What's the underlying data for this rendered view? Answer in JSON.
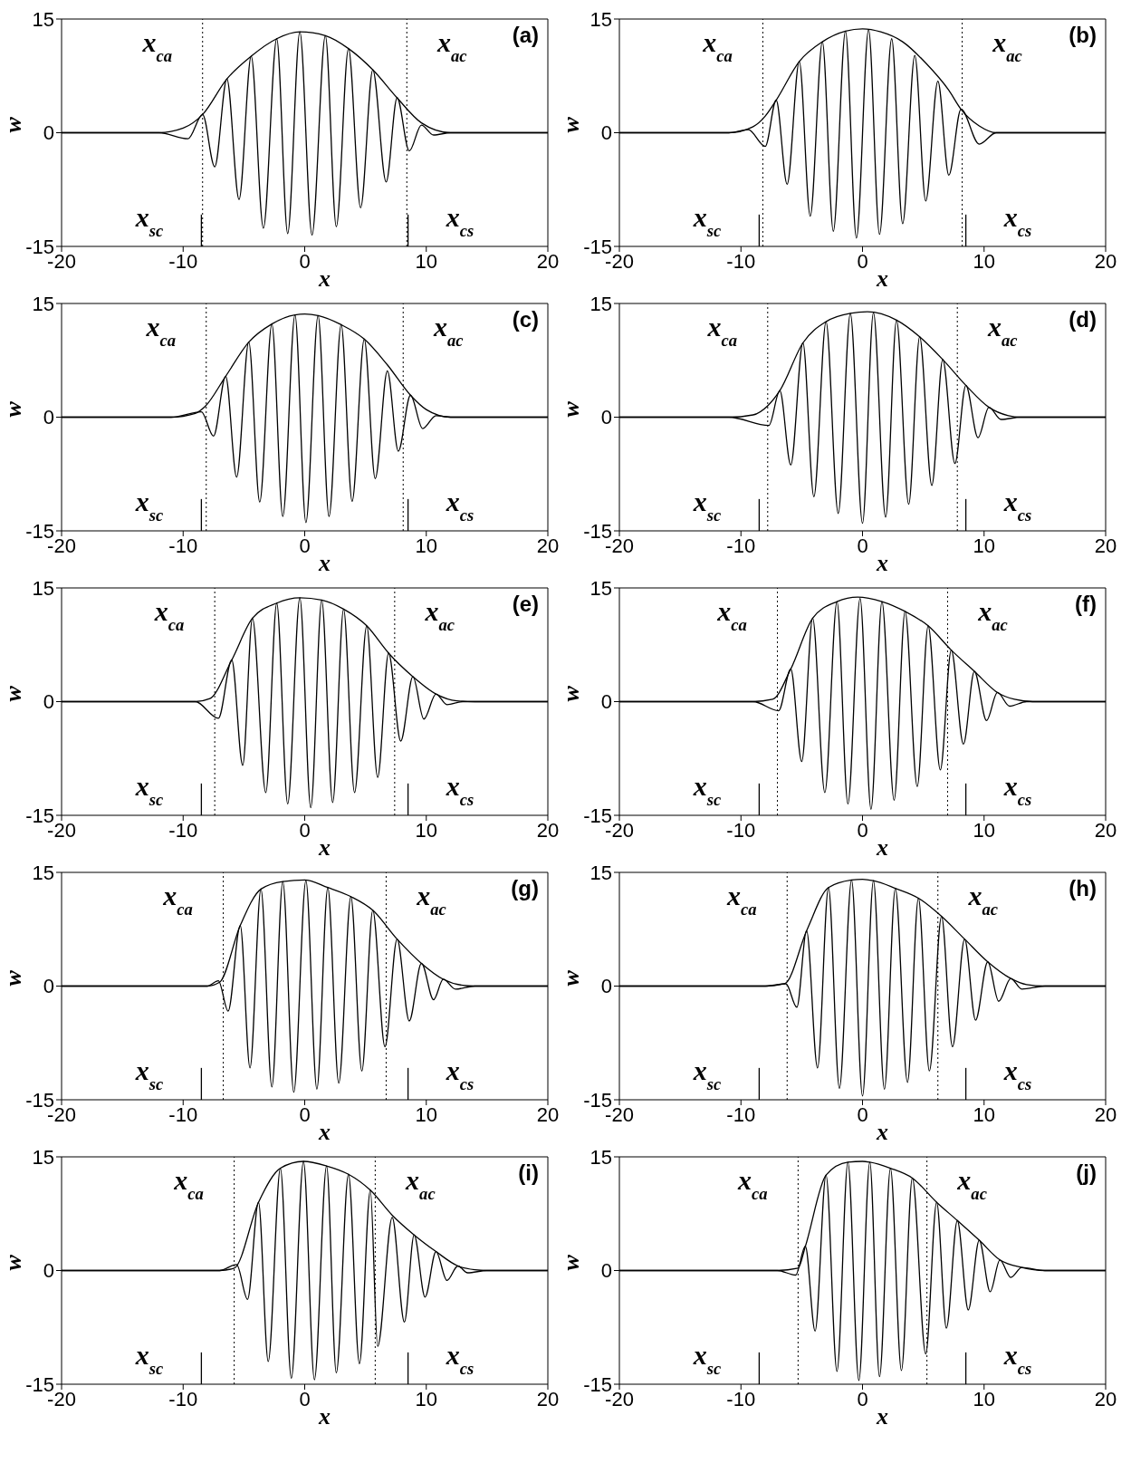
{
  "chart_data": [
    {
      "type": "line",
      "xlabel": "x",
      "ylabel": "w",
      "xlim": [
        -20,
        20
      ],
      "ylim": [
        -15,
        15
      ],
      "xticks": [
        -20,
        -10,
        0,
        10,
        20
      ],
      "yticks": [
        -15,
        0,
        15
      ],
      "annotations": [
        "(a)",
        "x$_{sc}$",
        "x$_{cs}$"
      ],
      "ref_lines": [
        {
          "axis": "x",
          "value": -8.4,
          "line_style": "dotted",
          "label": "x$_{ca}$"
        },
        {
          "axis": "x",
          "value": 8.4,
          "line_style": "dotted",
          "label": "x$_{ac}$"
        }
      ],
      "series": [
        {
          "color": "#000000",
          "x": [
            -20,
            -12,
            -9.6,
            -8.4,
            -7.4,
            -6.4,
            -5.4,
            -4.4,
            -3.4,
            -2.3,
            -1.4,
            -0.4,
            0.6,
            1.7,
            2.6,
            3.6,
            4.6,
            5.6,
            6.7,
            7.6,
            8.6,
            9.6,
            10.6,
            12,
            20
          ],
          "values": [
            0,
            0,
            -0.8,
            2.4,
            -4.5,
            7.1,
            -8.8,
            10.1,
            -12.6,
            12.4,
            -13.3,
            13.3,
            -13.5,
            12.8,
            -12.4,
            11.1,
            -9.9,
            8.3,
            -6.5,
            4.6,
            -2.4,
            1.0,
            -0.3,
            0,
            0
          ]
        },
        {
          "color": "#000000",
          "x": [
            -20,
            -12,
            -10,
            -8.4,
            -6.4,
            -4.4,
            -2.3,
            -0.4,
            1.7,
            3.6,
            5.6,
            7.6,
            9.6,
            12,
            20
          ],
          "values": [
            0,
            0,
            0.6,
            2.4,
            7.1,
            10.1,
            12.4,
            13.3,
            12.8,
            11.1,
            8.3,
            4.6,
            1.3,
            0,
            0
          ]
        },
        {
          "color": "#000000",
          "x": [
            -8.5,
            -8.5
          ],
          "values": [
            -15,
            -10.8
          ]
        },
        {
          "color": "#000000",
          "x": [
            8.5,
            8.5
          ],
          "values": [
            -15,
            -10.8
          ]
        }
      ]
    },
    {
      "type": "line",
      "xlabel": "x",
      "ylabel": "w",
      "xlim": [
        -20,
        20
      ],
      "ylim": [
        -15,
        15
      ],
      "xticks": [
        -20,
        -10,
        0,
        10,
        20
      ],
      "yticks": [
        -15,
        0,
        15
      ],
      "annotations": [
        "(b)",
        "x$_{sc}$",
        "x$_{cs}$"
      ],
      "ref_lines": [
        {
          "axis": "x",
          "value": -8.2,
          "line_style": "dotted",
          "label": "x$_{ca}$"
        },
        {
          "axis": "x",
          "value": 8.2,
          "line_style": "dotted",
          "label": "x$_{ac}$"
        }
      ],
      "series": [
        {
          "color": "#000000",
          "x": [
            -20,
            -11,
            -9.4,
            -8.0,
            -7.1,
            -6.2,
            -5.2,
            -4.3,
            -3.3,
            -2.4,
            -1.4,
            -0.5,
            0.5,
            1.4,
            2.4,
            3.3,
            4.3,
            5.2,
            6.2,
            7.1,
            8.1,
            9.6,
            11,
            20
          ],
          "values": [
            0,
            0,
            0.4,
            -1.8,
            4.3,
            -6.8,
            9.4,
            -11.0,
            12.0,
            -13.0,
            13.4,
            -13.9,
            13.6,
            -13.4,
            12.4,
            -12.0,
            10.2,
            -9.0,
            6.8,
            -5.6,
            3.1,
            -1.5,
            0,
            0
          ]
        },
        {
          "color": "#000000",
          "x": [
            -20,
            -11,
            -9,
            -8,
            -7.1,
            -5.2,
            -3.3,
            -1.4,
            0,
            1.5,
            3.3,
            5.2,
            7.1,
            8.1,
            9.6,
            11,
            20
          ],
          "values": [
            0,
            0,
            0.8,
            2.2,
            4.3,
            9.4,
            12.0,
            13.4,
            13.7,
            13.3,
            12.0,
            9.2,
            5.6,
            3.1,
            0.9,
            0,
            0
          ]
        },
        {
          "color": "#000000",
          "x": [
            -8.5,
            -8.5
          ],
          "values": [
            -15,
            -10.8
          ]
        },
        {
          "color": "#000000",
          "x": [
            8.5,
            8.5
          ],
          "values": [
            -15,
            -10.8
          ]
        }
      ]
    },
    {
      "type": "line",
      "xlabel": "x",
      "ylabel": "w",
      "xlim": [
        -20,
        20
      ],
      "ylim": [
        -15,
        15
      ],
      "xticks": [
        -20,
        -10,
        0,
        10,
        20
      ],
      "yticks": [
        -15,
        0,
        15
      ],
      "annotations": [
        "(c)",
        "x$_{sc}$",
        "x$_{cs}$"
      ],
      "ref_lines": [
        {
          "axis": "x",
          "value": -8.1,
          "line_style": "dotted",
          "label": "x$_{ca}$"
        },
        {
          "axis": "x",
          "value": 8.1,
          "line_style": "dotted",
          "label": "x$_{ac}$"
        }
      ],
      "series": [
        {
          "color": "#000000",
          "x": [
            -20,
            -11,
            -8.5,
            -7.5,
            -6.5,
            -5.6,
            -4.6,
            -3.7,
            -2.7,
            -1.8,
            -0.8,
            0.1,
            1.1,
            2.0,
            3.0,
            3.9,
            4.9,
            5.8,
            6.8,
            7.7,
            8.7,
            9.7,
            10.8,
            12,
            20
          ],
          "values": [
            0,
            0,
            0.7,
            -2.5,
            5.4,
            -7.9,
            9.9,
            -11.2,
            12.3,
            -13.1,
            13.5,
            -13.9,
            13.4,
            -13.1,
            12.2,
            -11.1,
            10.3,
            -8.1,
            6.1,
            -4.5,
            2.9,
            -1.5,
            0.2,
            0,
            0
          ]
        },
        {
          "color": "#000000",
          "x": [
            -20,
            -11,
            -9,
            -8.2,
            -6.5,
            -4.6,
            -2.7,
            -0.8,
            0,
            1.1,
            3.0,
            4.9,
            6.8,
            8.7,
            10,
            12,
            20
          ],
          "values": [
            0,
            0,
            0.5,
            1.4,
            5.4,
            9.9,
            12.3,
            13.5,
            13.6,
            13.4,
            12.2,
            10.3,
            6.9,
            2.9,
            1.0,
            0,
            0
          ]
        },
        {
          "color": "#000000",
          "x": [
            -8.5,
            -8.5
          ],
          "values": [
            -15,
            -10.8
          ]
        },
        {
          "color": "#000000",
          "x": [
            8.5,
            8.5
          ],
          "values": [
            -15,
            -10.8
          ]
        }
      ]
    },
    {
      "type": "line",
      "xlabel": "x",
      "ylabel": "w",
      "xlim": [
        -20,
        20
      ],
      "ylim": [
        -15,
        15
      ],
      "xticks": [
        -20,
        -10,
        0,
        10,
        20
      ],
      "yticks": [
        -15,
        0,
        15
      ],
      "annotations": [
        "(d)",
        "x$_{sc}$",
        "x$_{cs}$"
      ],
      "ref_lines": [
        {
          "axis": "x",
          "value": -7.8,
          "line_style": "dotted",
          "label": "x$_{ca}$"
        },
        {
          "axis": "x",
          "value": 7.8,
          "line_style": "dotted",
          "label": "x$_{ac}$"
        }
      ],
      "series": [
        {
          "color": "#000000",
          "x": [
            -20,
            -11,
            -7.7,
            -6.8,
            -5.9,
            -4.9,
            -4.0,
            -3.0,
            -2.0,
            -1.0,
            0.0,
            0.9,
            1.9,
            2.8,
            3.8,
            4.7,
            5.7,
            6.6,
            7.6,
            8.5,
            9.5,
            10.4,
            11.4,
            13,
            20
          ],
          "values": [
            0,
            0,
            -1.1,
            3.5,
            -6.3,
            9.8,
            -10.5,
            12.6,
            -12.7,
            13.7,
            -14.0,
            13.8,
            -13.2,
            12.8,
            -11.5,
            10.6,
            -9.0,
            7.6,
            -6.1,
            4.2,
            -2.7,
            1.3,
            -0.3,
            0,
            0
          ]
        },
        {
          "color": "#000000",
          "x": [
            -20,
            -11,
            -9,
            -7.8,
            -6.8,
            -4.9,
            -3.0,
            -1.0,
            0.4,
            2.8,
            4.7,
            6.6,
            8.5,
            10.4,
            12,
            13,
            20
          ],
          "values": [
            0,
            0,
            0.3,
            1.5,
            3.5,
            9.8,
            12.6,
            13.7,
            13.9,
            12.8,
            10.6,
            7.6,
            4.2,
            1.3,
            0.2,
            0,
            0
          ]
        },
        {
          "color": "#000000",
          "x": [
            -8.5,
            -8.5
          ],
          "values": [
            -15,
            -10.8
          ]
        },
        {
          "color": "#000000",
          "x": [
            8.5,
            8.5
          ],
          "values": [
            -15,
            -10.8
          ]
        }
      ]
    },
    {
      "type": "line",
      "xlabel": "x",
      "ylabel": "w",
      "xlim": [
        -20,
        20
      ],
      "ylim": [
        -15,
        15
      ],
      "xticks": [
        -20,
        -10,
        0,
        10,
        20
      ],
      "yticks": [
        -15,
        0,
        15
      ],
      "annotations": [
        "(e)",
        "x$_{sc}$",
        "x$_{cs}$"
      ],
      "ref_lines": [
        {
          "axis": "x",
          "value": -7.4,
          "line_style": "dotted",
          "label": "x$_{ca}$"
        },
        {
          "axis": "x",
          "value": 7.4,
          "line_style": "dotted",
          "label": "x$_{ac}$"
        }
      ],
      "series": [
        {
          "color": "#000000",
          "x": [
            -20,
            -9,
            -7.1,
            -6.0,
            -5.1,
            -4.3,
            -3.2,
            -2.3,
            -1.4,
            -0.4,
            0.5,
            1.4,
            2.3,
            3.2,
            4.1,
            5.1,
            6.0,
            6.9,
            7.9,
            8.9,
            9.8,
            10.8,
            11.7,
            13,
            20
          ],
          "values": [
            0,
            0,
            -2.2,
            5.5,
            -8.4,
            11.0,
            -12.0,
            13.0,
            -13.5,
            13.7,
            -14.0,
            13.4,
            -13.3,
            12.2,
            -12.0,
            10.0,
            -10.0,
            6.4,
            -5.2,
            3.3,
            -2.3,
            1.0,
            -0.4,
            0,
            0
          ]
        },
        {
          "color": "#000000",
          "x": [
            -20,
            -9,
            -7.8,
            -6.0,
            -4.3,
            -2.3,
            -0.4,
            1.4,
            3.2,
            5.1,
            6.9,
            8.9,
            10.8,
            12.5,
            14,
            20
          ],
          "values": [
            0,
            0,
            0.4,
            5.5,
            11.0,
            13.0,
            13.7,
            13.4,
            12.2,
            10.0,
            6.4,
            3.3,
            1.0,
            0.1,
            0,
            0
          ]
        },
        {
          "color": "#000000",
          "x": [
            -8.5,
            -8.5
          ],
          "values": [
            -15,
            -10.8
          ]
        },
        {
          "color": "#000000",
          "x": [
            8.5,
            8.5
          ],
          "values": [
            -15,
            -10.8
          ]
        }
      ]
    },
    {
      "type": "line",
      "xlabel": "x",
      "ylabel": "w",
      "xlim": [
        -20,
        20
      ],
      "ylim": [
        -15,
        15
      ],
      "xticks": [
        -20,
        -10,
        0,
        10,
        20
      ],
      "yticks": [
        -15,
        0,
        15
      ],
      "annotations": [
        "(f)",
        "x$_{sc}$",
        "x$_{cs}$"
      ],
      "ref_lines": [
        {
          "axis": "x",
          "value": -7.0,
          "line_style": "dotted",
          "label": "x$_{ca}$"
        },
        {
          "axis": "x",
          "value": 7.0,
          "line_style": "dotted",
          "label": "x$_{ac}$"
        }
      ],
      "series": [
        {
          "color": "#000000",
          "x": [
            -20,
            -9,
            -6.9,
            -5.9,
            -5.0,
            -4.1,
            -3.1,
            -2.1,
            -1.2,
            -0.2,
            0.7,
            1.6,
            2.6,
            3.5,
            4.5,
            5.4,
            6.4,
            7.3,
            8.3,
            9.2,
            10.2,
            11.1,
            12.1,
            13.5,
            20
          ],
          "values": [
            0,
            0,
            -1.2,
            4.3,
            -7.9,
            11.0,
            -12.0,
            13.2,
            -13.5,
            13.6,
            -14.2,
            13.2,
            -13.0,
            11.9,
            -11.2,
            10.0,
            -9.0,
            6.8,
            -5.6,
            4.0,
            -2.5,
            1.2,
            -0.6,
            0,
            0
          ]
        },
        {
          "color": "#000000",
          "x": [
            -20,
            -9,
            -7.4,
            -5.9,
            -4.1,
            -2.1,
            -0.4,
            1.6,
            3.5,
            5.4,
            7.3,
            9.2,
            11.1,
            12.5,
            14,
            20
          ],
          "values": [
            0,
            0,
            0.3,
            4.3,
            11.0,
            13.2,
            13.8,
            13.2,
            11.9,
            10.0,
            6.8,
            4.0,
            1.2,
            0.3,
            0,
            0
          ]
        },
        {
          "color": "#000000",
          "x": [
            -8.5,
            -8.5
          ],
          "values": [
            -15,
            -10.8
          ]
        },
        {
          "color": "#000000",
          "x": [
            8.5,
            8.5
          ],
          "values": [
            -15,
            -10.8
          ]
        }
      ]
    },
    {
      "type": "line",
      "xlabel": "x",
      "ylabel": "w",
      "xlim": [
        -20,
        20
      ],
      "ylim": [
        -15,
        15
      ],
      "xticks": [
        -20,
        -10,
        0,
        10,
        20
      ],
      "yticks": [
        -15,
        0,
        15
      ],
      "annotations": [
        "(g)",
        "x$_{sc}$",
        "x$_{cs}$"
      ],
      "ref_lines": [
        {
          "axis": "x",
          "value": -6.7,
          "line_style": "dotted",
          "label": "x$_{ca}$"
        },
        {
          "axis": "x",
          "value": 6.7,
          "line_style": "dotted",
          "label": "x$_{ac}$"
        }
      ],
      "series": [
        {
          "color": "#000000",
          "x": [
            -20,
            -8,
            -7.1,
            -6.3,
            -5.3,
            -4.5,
            -3.6,
            -2.7,
            -1.8,
            -0.9,
            0.1,
            1.0,
            1.9,
            2.8,
            3.8,
            4.7,
            5.6,
            6.6,
            7.6,
            8.6,
            9.6,
            10.6,
            11.4,
            12.4,
            14,
            20
          ],
          "values": [
            0,
            0,
            0.7,
            -3.3,
            8.0,
            -10.8,
            12.8,
            -13.3,
            13.8,
            -14.0,
            13.9,
            -13.6,
            13.0,
            -12.8,
            11.8,
            -11.2,
            10.0,
            -8.0,
            6.2,
            -4.6,
            3.0,
            -1.8,
            0.9,
            -0.4,
            0,
            0
          ]
        },
        {
          "color": "#000000",
          "x": [
            -20,
            -8,
            -7.0,
            -5.3,
            -3.6,
            -1.8,
            0,
            1.9,
            3.8,
            5.6,
            7.6,
            9.6,
            11.4,
            13,
            14,
            20
          ],
          "values": [
            0,
            0,
            0.5,
            8.0,
            12.8,
            13.8,
            14.0,
            13.0,
            11.8,
            10.0,
            6.2,
            3.0,
            0.9,
            0.1,
            0,
            0
          ]
        },
        {
          "color": "#000000",
          "x": [
            -8.5,
            -8.5
          ],
          "values": [
            -15,
            -10.8
          ]
        },
        {
          "color": "#000000",
          "x": [
            8.5,
            8.5
          ],
          "values": [
            -15,
            -10.8
          ]
        }
      ]
    },
    {
      "type": "line",
      "xlabel": "x",
      "ylabel": "w",
      "xlim": [
        -20,
        20
      ],
      "ylim": [
        -15,
        15
      ],
      "xticks": [
        -20,
        -10,
        0,
        10,
        20
      ],
      "yticks": [
        -15,
        0,
        15
      ],
      "annotations": [
        "(h)",
        "x$_{sc}$",
        "x$_{cs}$"
      ],
      "ref_lines": [
        {
          "axis": "x",
          "value": -6.2,
          "line_style": "dotted",
          "label": "x$_{ca}$"
        },
        {
          "axis": "x",
          "value": 6.2,
          "line_style": "dotted",
          "label": "x$_{ac}$"
        }
      ],
      "series": [
        {
          "color": "#000000",
          "x": [
            -20,
            -8,
            -6.3,
            -5.4,
            -4.6,
            -3.7,
            -2.8,
            -1.9,
            -0.9,
            0.0,
            0.9,
            1.8,
            2.7,
            3.7,
            4.6,
            5.5,
            6.5,
            7.4,
            8.4,
            9.3,
            10.3,
            11.2,
            12.2,
            13.1,
            15,
            20
          ],
          "values": [
            0,
            0,
            0.3,
            -2.8,
            7.3,
            -10.8,
            13.0,
            -13.5,
            14.0,
            -14.5,
            13.9,
            -13.6,
            12.9,
            -12.7,
            11.6,
            -11.2,
            9.2,
            -8.0,
            6.2,
            -4.5,
            3.2,
            -2.0,
            1.0,
            -0.4,
            0,
            0
          ]
        },
        {
          "color": "#000000",
          "x": [
            -20,
            -8,
            -6.4,
            -4.6,
            -2.8,
            -0.9,
            0,
            0.9,
            2.7,
            4.6,
            6.5,
            8.4,
            10.3,
            12.2,
            13.5,
            15,
            20
          ],
          "values": [
            0,
            0,
            0.3,
            7.3,
            13.0,
            14.0,
            14.1,
            13.9,
            12.9,
            11.6,
            9.2,
            6.2,
            3.2,
            1.0,
            0.2,
            0,
            0
          ]
        },
        {
          "color": "#000000",
          "x": [
            -8.5,
            -8.5
          ],
          "values": [
            -15,
            -10.8
          ]
        },
        {
          "color": "#000000",
          "x": [
            8.5,
            8.5
          ],
          "values": [
            -15,
            -10.8
          ]
        }
      ]
    },
    {
      "type": "line",
      "xlabel": "x",
      "ylabel": "w",
      "xlim": [
        -20,
        20
      ],
      "ylim": [
        -15,
        15
      ],
      "xticks": [
        -20,
        -10,
        0,
        10,
        20
      ],
      "yticks": [
        -15,
        0,
        15
      ],
      "annotations": [
        "(i)",
        "x$_{sc}$",
        "x$_{cs}$"
      ],
      "ref_lines": [
        {
          "axis": "x",
          "value": -5.8,
          "line_style": "dotted",
          "label": "x$_{ca}$"
        },
        {
          "axis": "x",
          "value": 5.8,
          "line_style": "dotted",
          "label": "x$_{ac}$"
        }
      ],
      "series": [
        {
          "color": "#000000",
          "x": [
            -20,
            -7,
            -5.6,
            -4.7,
            -3.8,
            -3.0,
            -2.0,
            -1.1,
            -0.1,
            0.8,
            1.8,
            2.6,
            3.6,
            4.5,
            5.4,
            6.0,
            7.2,
            8.2,
            9.0,
            9.9,
            10.8,
            11.7,
            12.6,
            13.4,
            15,
            20
          ],
          "values": [
            0,
            0,
            0.8,
            -3.8,
            9.0,
            -12.0,
            13.5,
            -14.2,
            14.4,
            -14.4,
            13.8,
            -13.5,
            12.7,
            -12.3,
            10.6,
            -10.0,
            7.0,
            -6.8,
            4.7,
            -3.5,
            2.5,
            -1.3,
            0.6,
            -0.3,
            0,
            0
          ]
        },
        {
          "color": "#000000",
          "x": [
            -20,
            -7,
            -5.8,
            -3.8,
            -2.0,
            -0.1,
            1.8,
            3.6,
            5.4,
            7.2,
            9.0,
            10.8,
            12.6,
            14,
            15,
            20
          ],
          "values": [
            0,
            0,
            0.3,
            9.0,
            13.5,
            14.4,
            13.8,
            12.7,
            10.6,
            7.3,
            4.7,
            2.5,
            0.6,
            0.1,
            0,
            0
          ]
        },
        {
          "color": "#000000",
          "x": [
            -8.5,
            -8.5
          ],
          "values": [
            -15,
            -10.8
          ]
        },
        {
          "color": "#000000",
          "x": [
            8.5,
            8.5
          ],
          "values": [
            -15,
            -10.8
          ]
        }
      ]
    },
    {
      "type": "line",
      "xlabel": "x",
      "ylabel": "w",
      "xlim": [
        -20,
        20
      ],
      "ylim": [
        -15,
        15
      ],
      "xticks": [
        -20,
        -10,
        0,
        10,
        20
      ],
      "yticks": [
        -15,
        0,
        15
      ],
      "annotations": [
        "(j)",
        "x$_{sc}$",
        "x$_{cs}$"
      ],
      "ref_lines": [
        {
          "axis": "x",
          "value": -5.3,
          "line_style": "dotted",
          "label": "x$_{ca}$"
        },
        {
          "axis": "x",
          "value": 5.3,
          "line_style": "dotted",
          "label": "x$_{ac}$"
        }
      ],
      "series": [
        {
          "color": "#000000",
          "x": [
            -20,
            -7,
            -5.5,
            -4.7,
            -3.9,
            -3.0,
            -2.1,
            -1.2,
            -0.3,
            0.6,
            1.4,
            2.3,
            3.2,
            4.1,
            5.2,
            6.1,
            6.9,
            7.8,
            8.7,
            9.6,
            10.5,
            11.3,
            12.2,
            13.1,
            15,
            20
          ],
          "values": [
            0,
            0,
            -0.6,
            3.2,
            -8.0,
            12.6,
            -13.3,
            14.3,
            -14.5,
            14.3,
            -14.0,
            13.5,
            -13.2,
            12.2,
            -11.0,
            9.0,
            -7.6,
            6.6,
            -5.2,
            4.0,
            -2.8,
            1.4,
            -0.9,
            0.4,
            0,
            0
          ]
        },
        {
          "color": "#000000",
          "x": [
            -20,
            -7,
            -5.3,
            -4.7,
            -3.0,
            -1.2,
            0,
            0.6,
            2.3,
            4.1,
            6.1,
            7.8,
            9.6,
            11.3,
            13.1,
            15,
            20
          ],
          "values": [
            0,
            0,
            0.3,
            3.2,
            12.6,
            14.3,
            14.4,
            14.3,
            13.5,
            12.2,
            9.0,
            6.6,
            4.0,
            1.4,
            0.4,
            0,
            0
          ]
        },
        {
          "color": "#000000",
          "x": [
            -8.5,
            -8.5
          ],
          "values": [
            -15,
            -10.8
          ]
        },
        {
          "color": "#000000",
          "x": [
            8.5,
            8.5
          ],
          "values": [
            -15,
            -10.8
          ]
        }
      ]
    }
  ]
}
